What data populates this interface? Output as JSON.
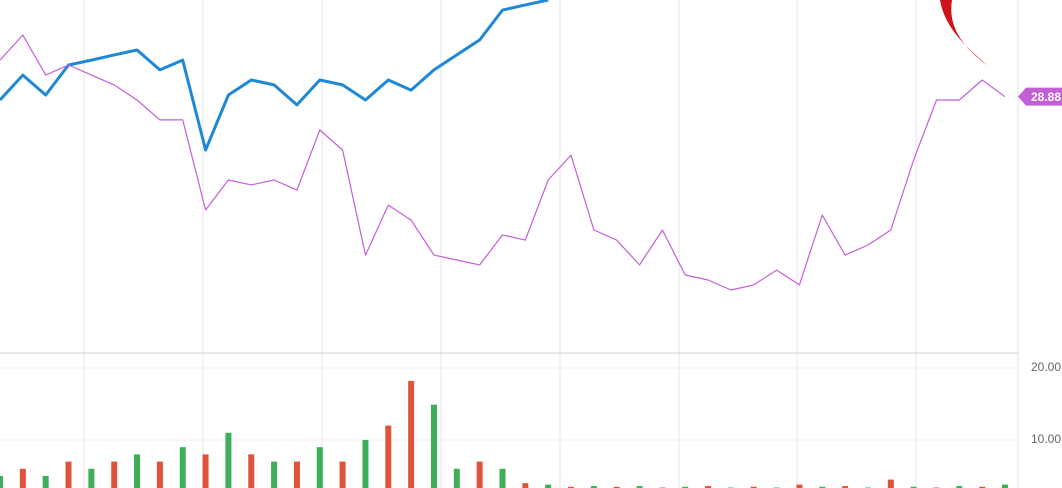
{
  "chart_data": [
    {
      "type": "line",
      "ylim": [
        18,
        33
      ],
      "series": [
        {
          "color": "#1e88d8",
          "width": 3,
          "values": [
            28.74,
            29.8,
            28.95,
            30.23,
            30.44,
            30.66,
            30.87,
            30.02,
            30.44,
            26.61,
            28.95,
            29.59,
            29.38,
            28.53,
            29.59,
            29.38,
            28.74,
            29.59,
            29.16,
            30.02,
            30.66,
            31.3,
            32.57,
            32.79,
            33,
            null,
            null,
            null,
            null,
            null,
            null,
            null,
            null,
            null,
            null,
            null,
            null,
            null,
            null,
            null,
            null,
            null,
            null,
            null,
            null
          ]
        },
        {
          "color": "#c35fd6",
          "width": 1.2,
          "values": [
            30.44,
            31.51,
            29.8,
            30.23,
            29.8,
            29.38,
            28.74,
            27.89,
            27.89,
            24.05,
            25.33,
            25.12,
            25.33,
            24.9,
            27.46,
            26.61,
            22.13,
            24.26,
            23.62,
            22.13,
            21.92,
            21.71,
            22.99,
            22.77,
            25.33,
            26.39,
            23.2,
            22.77,
            21.71,
            23.2,
            21.28,
            21.07,
            20.64,
            20.86,
            21.49,
            20.86,
            23.84,
            22.13,
            22.56,
            23.2,
            26.18,
            28.74,
            28.74,
            29.59,
            28.88
          ]
        }
      ]
    },
    {
      "type": "bar",
      "ylim": [
        0,
        21.8
      ],
      "yticks": [
        {
          "value": 20,
          "label": "20.00"
        },
        {
          "value": 10,
          "label": "10.00"
        }
      ],
      "series": [
        {
          "color": "#3dae5a",
          "values": [
            5,
            null,
            5,
            null,
            6,
            null,
            8,
            null,
            9,
            null,
            11,
            null,
            7,
            null,
            9,
            null,
            10,
            null,
            null,
            14.9,
            6,
            null,
            6,
            null,
            3.8,
            null,
            3.6,
            null,
            3.6,
            null,
            3.5,
            null,
            3.4,
            null,
            3.4,
            null,
            3.5,
            null,
            3.4,
            null,
            3.5,
            null,
            3.6,
            null,
            3.8
          ]
        },
        {
          "color": "#e0533b",
          "values": [
            null,
            6,
            null,
            7,
            null,
            7,
            null,
            7,
            null,
            8,
            null,
            8,
            null,
            7,
            null,
            7,
            null,
            12,
            18.2,
            null,
            null,
            7,
            null,
            4,
            null,
            3.5,
            null,
            3.5,
            null,
            3.4,
            null,
            3.6,
            null,
            3.5,
            null,
            3.8,
            null,
            3.6,
            null,
            4.5,
            null,
            3.4,
            null,
            3.5,
            null
          ]
        }
      ]
    }
  ]
}
